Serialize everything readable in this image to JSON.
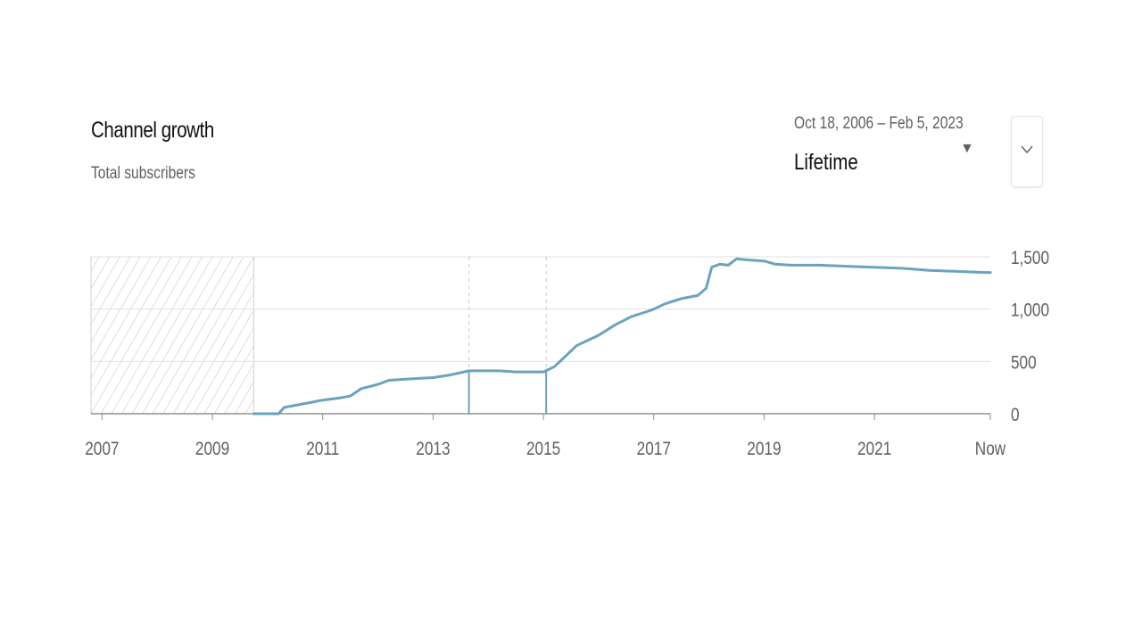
{
  "header": {
    "title": "Channel growth",
    "subtitle": "Total subscribers"
  },
  "range_selector": {
    "dates": "Oct 18, 2006 – Feb 5, 2023",
    "label": "Lifetime",
    "caret_icon": "triangle-down-icon"
  },
  "expand_button": {
    "icon": "chevron-down-icon"
  },
  "colors": {
    "series": "#6ba2be",
    "grid": "#e0e0e0",
    "axis": "#909090",
    "hatch": "#bdbdbd",
    "tick_text": "#606060"
  },
  "chart_data": {
    "type": "line",
    "title": "Channel growth",
    "subtitle": "Total subscribers",
    "xlabel": "",
    "ylabel": "",
    "xlim": [
      2006.8,
      2023.1
    ],
    "ylim": [
      0,
      1500
    ],
    "x_ticks": [
      {
        "value": 2007,
        "label": "2007"
      },
      {
        "value": 2009,
        "label": "2009"
      },
      {
        "value": 2011,
        "label": "2011"
      },
      {
        "value": 2013,
        "label": "2013"
      },
      {
        "value": 2015,
        "label": "2015"
      },
      {
        "value": 2017,
        "label": "2017"
      },
      {
        "value": 2019,
        "label": "2019"
      },
      {
        "value": 2021,
        "label": "2021"
      },
      {
        "value": 2023.1,
        "label": "Now"
      }
    ],
    "y_ticks": [
      {
        "value": 0,
        "label": "0"
      },
      {
        "value": 500,
        "label": "500"
      },
      {
        "value": 1000,
        "label": "1,000"
      },
      {
        "value": 1500,
        "label": "1,500"
      }
    ],
    "no_data_region": [
      2006.8,
      2009.75
    ],
    "grid": true,
    "markers": [
      2013.65,
      2015.05
    ],
    "series": [
      {
        "x": [
          2009.75,
          2010.0,
          2010.2,
          2010.3,
          2010.5,
          2010.8,
          2011.0,
          2011.3,
          2011.5,
          2011.7,
          2012.0,
          2012.2,
          2012.5,
          2012.8,
          2013.0,
          2013.3,
          2013.65,
          2013.8,
          2014.2,
          2014.5,
          2015.0,
          2015.2,
          2015.4,
          2015.6,
          2016.0,
          2016.3,
          2016.6,
          2016.9,
          2017.0,
          2017.2,
          2017.5,
          2017.8,
          2017.95,
          2018.05,
          2018.2,
          2018.35,
          2018.5,
          2018.7,
          2019.0,
          2019.2,
          2019.5,
          2020.0,
          2020.5,
          2021.0,
          2021.5,
          2022.0,
          2022.5,
          2023.0,
          2023.1
        ],
        "values": [
          0,
          0,
          0,
          60,
          80,
          110,
          130,
          150,
          170,
          240,
          280,
          320,
          330,
          340,
          345,
          370,
          410,
          410,
          410,
          400,
          400,
          450,
          550,
          650,
          750,
          850,
          930,
          980,
          1000,
          1050,
          1100,
          1130,
          1200,
          1400,
          1430,
          1420,
          1480,
          1470,
          1460,
          1430,
          1420,
          1420,
          1410,
          1400,
          1390,
          1370,
          1360,
          1350,
          1350
        ]
      }
    ]
  }
}
